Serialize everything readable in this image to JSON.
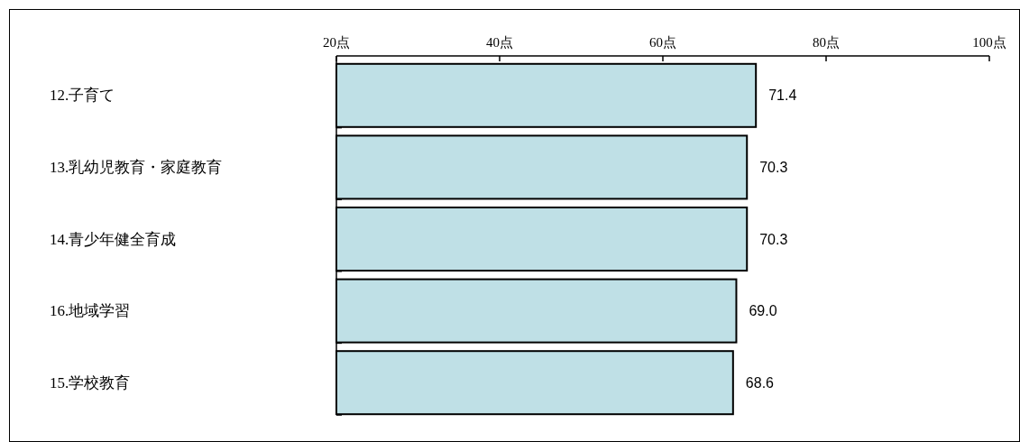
{
  "chart_data": {
    "type": "bar",
    "orientation": "horizontal",
    "categories": [
      "12.子育て",
      "13.乳幼児教育・家庭教育",
      "14.青少年健全育成",
      "16.地域学習",
      "15.学校教育"
    ],
    "values": [
      71.4,
      70.3,
      70.3,
      69.0,
      68.6
    ],
    "value_labels": [
      "71.4",
      "70.3",
      "70.3",
      "69.0",
      "68.6"
    ],
    "color": "#bfe0e6",
    "xlim": [
      20,
      100
    ],
    "xticks": [
      {
        "value": 20,
        "label": "20点"
      },
      {
        "value": 40,
        "label": "40点"
      },
      {
        "value": 60,
        "label": "60点"
      },
      {
        "value": 80,
        "label": "80点"
      },
      {
        "value": 100,
        "label": "100点"
      }
    ],
    "grid": false
  }
}
